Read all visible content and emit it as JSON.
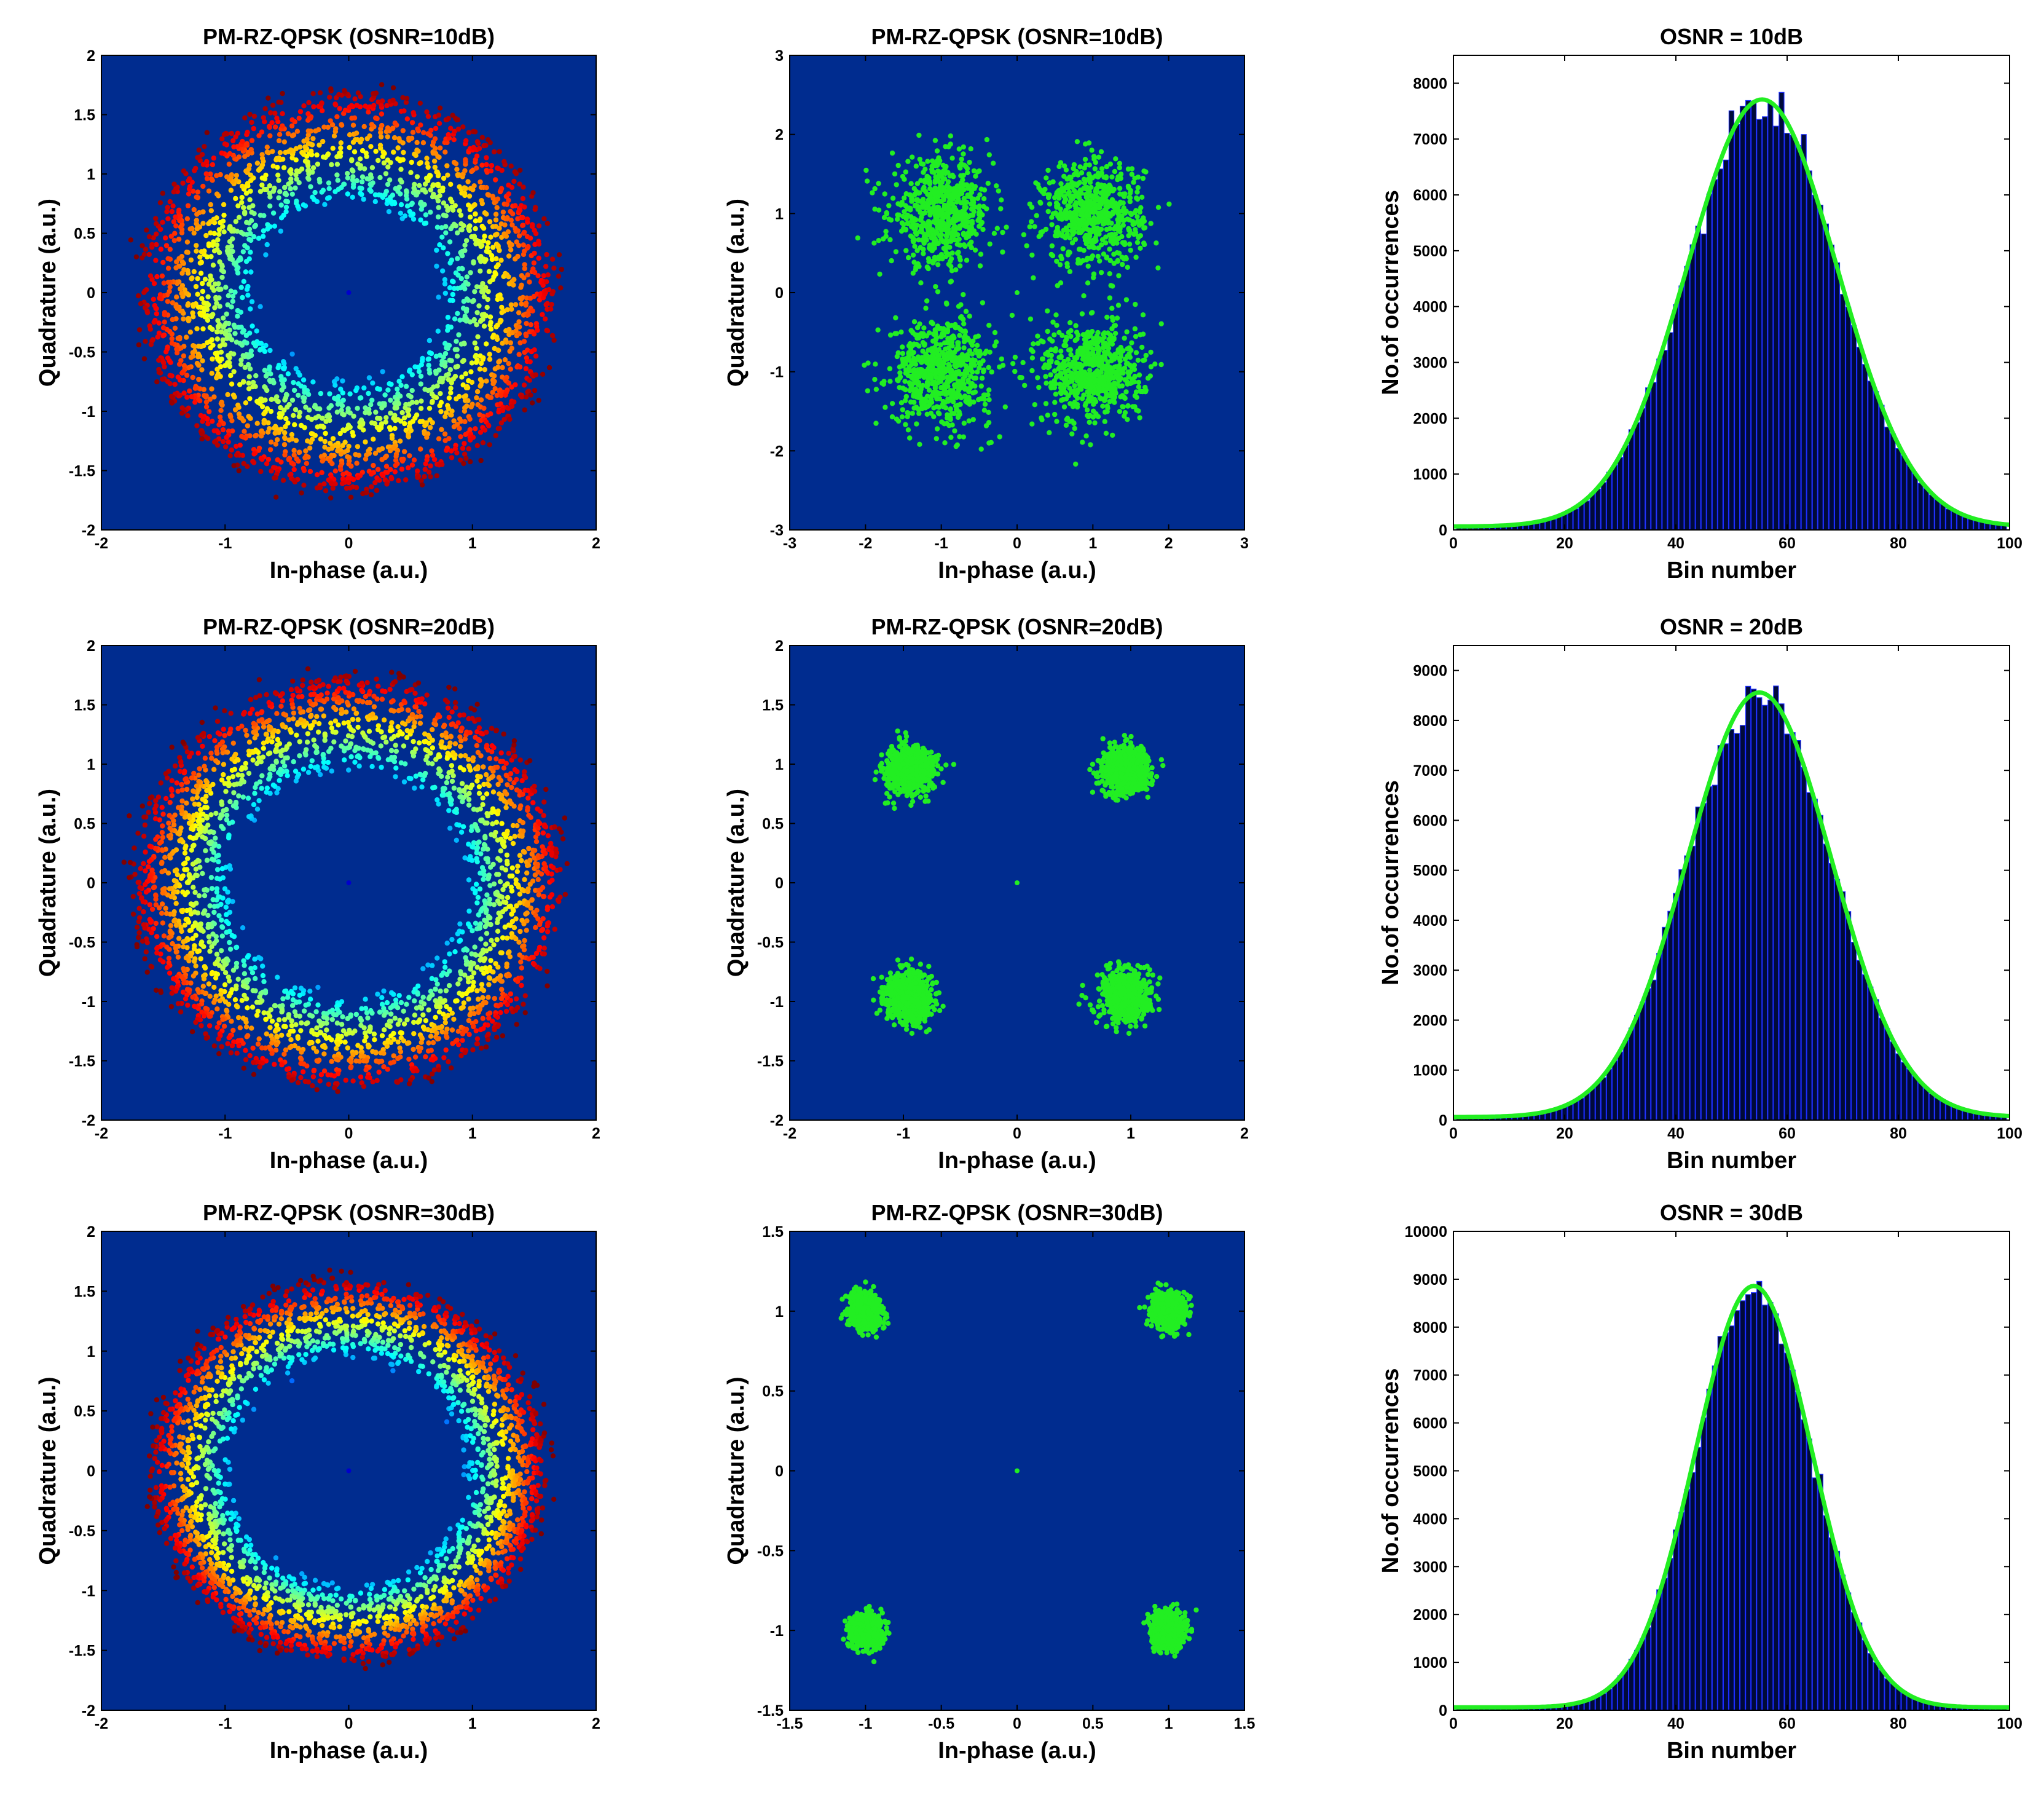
{
  "colors": {
    "plot_bg": "#002C8F",
    "constellation": "#22EE22",
    "fit_curve": "#22EE22",
    "bars": "#000A3A",
    "bar_edge": "#1B2CFF",
    "frame": "#000000"
  },
  "chart_data": [
    {
      "id": "r1c1",
      "type": "scatter",
      "title": "PM-RZ-QPSK (OSNR=10dB)",
      "xlabel": "In-phase (a.u.)",
      "ylabel": "Quadrature (a.u.)",
      "xlim": [
        -2,
        2
      ],
      "ylim": [
        -2,
        2
      ],
      "xticks": [
        "-2",
        "-1",
        "0",
        "1",
        "2"
      ],
      "yticks": [
        "-2",
        "-1.5",
        "-1",
        "-0.5",
        "0",
        "0.5",
        "1",
        "1.5",
        "2"
      ],
      "distribution": "ring",
      "colormap": "jet",
      "ring_inner_radius": 0.8,
      "ring_outer_radius": 1.7,
      "center_point": [
        0,
        0
      ]
    },
    {
      "id": "r1c2",
      "type": "scatter",
      "title": "PM-RZ-QPSK (OSNR=10dB)",
      "xlabel": "In-phase (a.u.)",
      "ylabel": "Quadrature (a.u.)",
      "xlim": [
        -3,
        3
      ],
      "ylim": [
        -3,
        3
      ],
      "xticks": [
        "-3",
        "-2",
        "-1",
        "0",
        "1",
        "2",
        "3"
      ],
      "yticks": [
        "-3",
        "-2",
        "-1",
        "0",
        "1",
        "2",
        "3"
      ],
      "distribution": "clusters",
      "cluster_centers": [
        [
          -1,
          1
        ],
        [
          1,
          1
        ],
        [
          -1,
          -1
        ],
        [
          1,
          -1
        ]
      ],
      "cluster_spread": 0.55,
      "center_point": [
        0,
        0
      ]
    },
    {
      "id": "r1c3",
      "type": "bar",
      "title": "OSNR = 10dB",
      "xlabel": "Bin number",
      "ylabel": "No.of occurrences",
      "xlim": [
        0,
        100
      ],
      "ylim": [
        0,
        8500
      ],
      "xticks": [
        "0",
        "20",
        "40",
        "60",
        "80",
        "100"
      ],
      "yticks": [
        "0",
        "1000",
        "2000",
        "3000",
        "4000",
        "5000",
        "6000",
        "7000",
        "8000"
      ],
      "gaussian_fit": {
        "peak": 7650,
        "mean": 55.5,
        "sigma": 13.5
      }
    },
    {
      "id": "r2c1",
      "type": "scatter",
      "title": "PM-RZ-QPSK (OSNR=20dB)",
      "xlabel": "In-phase (a.u.)",
      "ylabel": "Quadrature (a.u.)",
      "xlim": [
        -2,
        2
      ],
      "ylim": [
        -2,
        2
      ],
      "xticks": [
        "-2",
        "-1",
        "0",
        "1",
        "2"
      ],
      "yticks": [
        "-2",
        "-1.5",
        "-1",
        "-0.5",
        "0",
        "0.5",
        "1",
        "1.5",
        "2"
      ],
      "distribution": "ring",
      "colormap": "jet",
      "ring_inner_radius": 1.0,
      "ring_outer_radius": 1.75,
      "center_point": [
        0,
        0
      ]
    },
    {
      "id": "r2c2",
      "type": "scatter",
      "title": "PM-RZ-QPSK (OSNR=20dB)",
      "xlabel": "In-phase (a.u.)",
      "ylabel": "Quadrature (a.u.)",
      "xlim": [
        -2,
        2
      ],
      "ylim": [
        -2,
        2
      ],
      "xticks": [
        "-2",
        "-1",
        "0",
        "1",
        "2"
      ],
      "yticks": [
        "-2",
        "-1.5",
        "-1",
        "-0.5",
        "0",
        "0.5",
        "1",
        "1.5",
        "2"
      ],
      "distribution": "clusters",
      "cluster_centers": [
        [
          -0.95,
          0.95
        ],
        [
          0.95,
          0.95
        ],
        [
          -0.95,
          -0.95
        ],
        [
          0.95,
          -0.95
        ]
      ],
      "cluster_spread": 0.17,
      "center_point": [
        0,
        0
      ]
    },
    {
      "id": "r2c3",
      "type": "bar",
      "title": "OSNR = 20dB",
      "xlabel": "Bin number",
      "ylabel": "No.of occurrences",
      "xlim": [
        0,
        100
      ],
      "ylim": [
        0,
        9500
      ],
      "xticks": [
        "0",
        "20",
        "40",
        "60",
        "80",
        "100"
      ],
      "yticks": [
        "0",
        "1000",
        "2000",
        "3000",
        "4000",
        "5000",
        "6000",
        "7000",
        "8000",
        "9000"
      ],
      "gaussian_fit": {
        "peak": 8500,
        "mean": 55.0,
        "sigma": 13.0
      }
    },
    {
      "id": "r3c1",
      "type": "scatter",
      "title": "PM-RZ-QPSK (OSNR=30dB)",
      "xlabel": "In-phase (a.u.)",
      "ylabel": "Quadrature (a.u.)",
      "xlim": [
        -2,
        2
      ],
      "ylim": [
        -2,
        2
      ],
      "xticks": [
        "-2",
        "-1",
        "0",
        "1",
        "2"
      ],
      "yticks": [
        "-2",
        "-1.5",
        "-1",
        "-0.5",
        "0",
        "0.5",
        "1",
        "1.5",
        "2"
      ],
      "distribution": "ring",
      "colormap": "jet",
      "ring_inner_radius": 1.0,
      "ring_outer_radius": 1.6,
      "center_point": [
        0,
        0
      ]
    },
    {
      "id": "r3c2",
      "type": "scatter",
      "title": "PM-RZ-QPSK (OSNR=30dB)",
      "xlabel": "In-phase (a.u.)",
      "ylabel": "Quadrature (a.u.)",
      "xlim": [
        -1.5,
        1.5
      ],
      "ylim": [
        -1.5,
        1.5
      ],
      "xticks": [
        "-1.5",
        "-1",
        "-0.5",
        "0",
        "0.5",
        "1",
        "1.5"
      ],
      "yticks": [
        "-1.5",
        "-1",
        "-0.5",
        "0",
        "0.5",
        "1",
        "1.5"
      ],
      "distribution": "clusters",
      "cluster_centers": [
        [
          -1.0,
          1.0
        ],
        [
          1.0,
          1.0
        ],
        [
          -1.0,
          -1.0
        ],
        [
          1.0,
          -1.0
        ]
      ],
      "cluster_spread": 0.09,
      "center_point": [
        0,
        0
      ]
    },
    {
      "id": "r3c3",
      "type": "bar",
      "title": "OSNR = 30dB",
      "xlabel": "Bin number",
      "ylabel": "No.of occurrences",
      "xlim": [
        0,
        100
      ],
      "ylim": [
        0,
        10000
      ],
      "xticks": [
        "0",
        "20",
        "40",
        "60",
        "80",
        "100"
      ],
      "yticks": [
        "0",
        "1000",
        "2000",
        "3000",
        "4000",
        "5000",
        "6000",
        "7000",
        "8000",
        "9000",
        "10000"
      ],
      "gaussian_fit": {
        "peak": 8800,
        "mean": 54.0,
        "sigma": 10.5
      }
    }
  ]
}
